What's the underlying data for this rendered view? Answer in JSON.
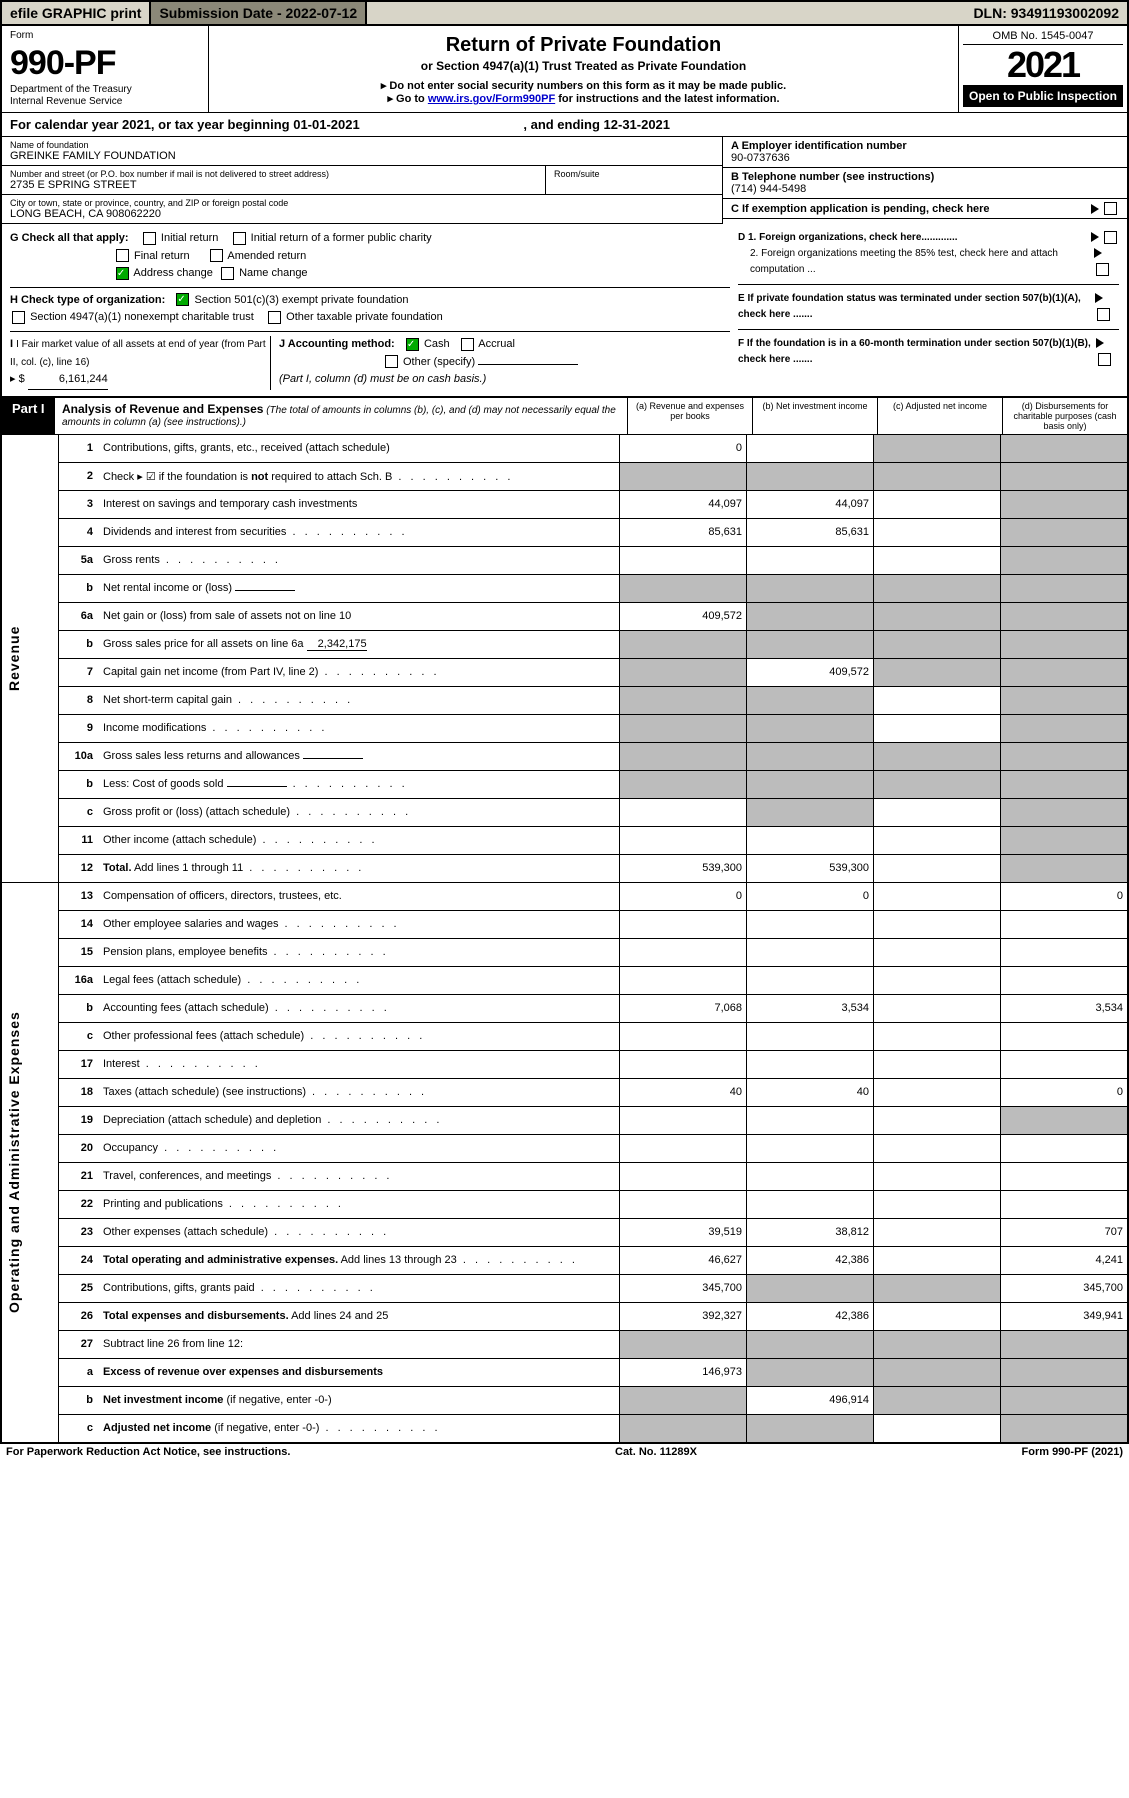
{
  "top": {
    "efile": "efile GRAPHIC print",
    "sub_label": "Submission Date - 2022-07-12",
    "dln": "DLN: 93491193002092"
  },
  "header": {
    "form_label": "Form",
    "form_num": "990-PF",
    "dept": "Department of the Treasury",
    "irs": "Internal Revenue Service",
    "title": "Return of Private Foundation",
    "subtitle": "or Section 4947(a)(1) Trust Treated as Private Foundation",
    "instr1": "▸ Do not enter social security numbers on this form as it may be made public.",
    "instr2_pre": "▸ Go to ",
    "instr2_link": "www.irs.gov/Form990PF",
    "instr2_post": " for instructions and the latest information.",
    "omb": "OMB No. 1545-0047",
    "year": "2021",
    "open": "Open to Public Inspection"
  },
  "cal": {
    "text": "For calendar year 2021, or tax year beginning 01-01-2021",
    "ending": ", and ending 12-31-2021"
  },
  "info": {
    "name_label": "Name of foundation",
    "name": "GREINKE FAMILY FOUNDATION",
    "addr_label": "Number and street (or P.O. box number if mail is not delivered to street address)",
    "addr": "2735 E SPRING STREET",
    "room_label": "Room/suite",
    "room": "",
    "city_label": "City or town, state or province, country, and ZIP or foreign postal code",
    "city": "LONG BEACH, CA  908062220",
    "a_label": "A Employer identification number",
    "a_val": "90-0737636",
    "b_label": "B Telephone number (see instructions)",
    "b_val": "(714) 944-5498",
    "c_label": "C If exemption application is pending, check here"
  },
  "g": {
    "label": "G Check all that apply:",
    "initial": "Initial return",
    "initial_former": "Initial return of a former public charity",
    "final": "Final return",
    "amended": "Amended return",
    "address": "Address change",
    "name_change": "Name change"
  },
  "h": {
    "label": "H Check type of organization:",
    "s501": "Section 501(c)(3) exempt private foundation",
    "s4947": "Section 4947(a)(1) nonexempt charitable trust",
    "other_tax": "Other taxable private foundation"
  },
  "i": {
    "label": "I Fair market value of all assets at end of year (from Part II, col. (c), line 16)",
    "arrow": "▸ $",
    "val": "6,161,244"
  },
  "j": {
    "label": "J Accounting method:",
    "cash": "Cash",
    "accrual": "Accrual",
    "other": "Other (specify)",
    "note": "(Part I, column (d) must be on cash basis.)"
  },
  "d": {
    "d1": "D 1. Foreign organizations, check here.............",
    "d2": "2. Foreign organizations meeting the 85% test, check here and attach computation ...",
    "e": "E If private foundation status was terminated under section 507(b)(1)(A), check here .......",
    "f": "F If the foundation is in a 60-month termination under section 507(b)(1)(B), check here ......."
  },
  "part1": {
    "tag": "Part I",
    "title": "Analysis of Revenue and Expenses",
    "note": " (The total of amounts in columns (b), (c), and (d) may not necessarily equal the amounts in column (a) (see instructions).)",
    "ca": "(a) Revenue and expenses per books",
    "cb": "(b) Net investment income",
    "cc": "(c) Adjusted net income",
    "cd": "(d) Disbursements for charitable purposes (cash basis only)"
  },
  "side": {
    "rev": "Revenue",
    "exp": "Operating and Administrative Expenses"
  },
  "rows": [
    {
      "n": "1",
      "l": "Contributions, gifts, grants, etc., received (attach schedule)",
      "a": "0",
      "b": "",
      "c": "g",
      "d": "g"
    },
    {
      "n": "2",
      "l": "Check ▸ ☑ if the foundation is <b>not</b> required to attach Sch. B",
      "dots": true,
      "a": "g",
      "b": "g",
      "c": "g",
      "d": "g"
    },
    {
      "n": "3",
      "l": "Interest on savings and temporary cash investments",
      "a": "44,097",
      "b": "44,097",
      "c": "",
      "d": "g"
    },
    {
      "n": "4",
      "l": "Dividends and interest from securities",
      "dots": true,
      "a": "85,631",
      "b": "85,631",
      "c": "",
      "d": "g"
    },
    {
      "n": "5a",
      "l": "Gross rents",
      "dots": true,
      "a": "",
      "b": "",
      "c": "",
      "d": "g"
    },
    {
      "n": "b",
      "l": "Net rental income or (loss)",
      "inline": "",
      "a": "g",
      "b": "g",
      "c": "g",
      "d": "g"
    },
    {
      "n": "6a",
      "l": "Net gain or (loss) from sale of assets not on line 10",
      "a": "409,572",
      "b": "g",
      "c": "g",
      "d": "g"
    },
    {
      "n": "b",
      "l": "Gross sales price for all assets on line 6a",
      "inline": "2,342,175",
      "a": "g",
      "b": "g",
      "c": "g",
      "d": "g"
    },
    {
      "n": "7",
      "l": "Capital gain net income (from Part IV, line 2)",
      "dots": true,
      "a": "g",
      "b": "409,572",
      "c": "g",
      "d": "g"
    },
    {
      "n": "8",
      "l": "Net short-term capital gain",
      "dots": true,
      "a": "g",
      "b": "g",
      "c": "",
      "d": "g"
    },
    {
      "n": "9",
      "l": "Income modifications",
      "dots": true,
      "a": "g",
      "b": "g",
      "c": "",
      "d": "g"
    },
    {
      "n": "10a",
      "l": "Gross sales less returns and allowances",
      "inline": "",
      "a": "g",
      "b": "g",
      "c": "g",
      "d": "g"
    },
    {
      "n": "b",
      "l": "Less: Cost of goods sold",
      "dots": true,
      "inline": "",
      "a": "g",
      "b": "g",
      "c": "g",
      "d": "g"
    },
    {
      "n": "c",
      "l": "Gross profit or (loss) (attach schedule)",
      "dots": true,
      "a": "",
      "b": "g",
      "c": "",
      "d": "g"
    },
    {
      "n": "11",
      "l": "Other income (attach schedule)",
      "dots": true,
      "a": "",
      "b": "",
      "c": "",
      "d": "g"
    },
    {
      "n": "12",
      "l": "<b>Total.</b> Add lines 1 through 11",
      "dots": true,
      "a": "539,300",
      "b": "539,300",
      "c": "",
      "d": "g"
    },
    {
      "n": "13",
      "l": "Compensation of officers, directors, trustees, etc.",
      "a": "0",
      "b": "0",
      "c": "",
      "d": "0"
    },
    {
      "n": "14",
      "l": "Other employee salaries and wages",
      "dots": true,
      "a": "",
      "b": "",
      "c": "",
      "d": ""
    },
    {
      "n": "15",
      "l": "Pension plans, employee benefits",
      "dots": true,
      "a": "",
      "b": "",
      "c": "",
      "d": ""
    },
    {
      "n": "16a",
      "l": "Legal fees (attach schedule)",
      "dots": true,
      "a": "",
      "b": "",
      "c": "",
      "d": ""
    },
    {
      "n": "b",
      "l": "Accounting fees (attach schedule)",
      "dots": true,
      "a": "7,068",
      "b": "3,534",
      "c": "",
      "d": "3,534"
    },
    {
      "n": "c",
      "l": "Other professional fees (attach schedule)",
      "dots": true,
      "a": "",
      "b": "",
      "c": "",
      "d": ""
    },
    {
      "n": "17",
      "l": "Interest",
      "dots": true,
      "a": "",
      "b": "",
      "c": "",
      "d": ""
    },
    {
      "n": "18",
      "l": "Taxes (attach schedule) (see instructions)",
      "dots": true,
      "a": "40",
      "b": "40",
      "c": "",
      "d": "0"
    },
    {
      "n": "19",
      "l": "Depreciation (attach schedule) and depletion",
      "dots": true,
      "a": "",
      "b": "",
      "c": "",
      "d": "g"
    },
    {
      "n": "20",
      "l": "Occupancy",
      "dots": true,
      "a": "",
      "b": "",
      "c": "",
      "d": ""
    },
    {
      "n": "21",
      "l": "Travel, conferences, and meetings",
      "dots": true,
      "a": "",
      "b": "",
      "c": "",
      "d": ""
    },
    {
      "n": "22",
      "l": "Printing and publications",
      "dots": true,
      "a": "",
      "b": "",
      "c": "",
      "d": ""
    },
    {
      "n": "23",
      "l": "Other expenses (attach schedule)",
      "dots": true,
      "a": "39,519",
      "b": "38,812",
      "c": "",
      "d": "707"
    },
    {
      "n": "24",
      "l": "<b>Total operating and administrative expenses.</b> Add lines 13 through 23",
      "dots": true,
      "a": "46,627",
      "b": "42,386",
      "c": "",
      "d": "4,241"
    },
    {
      "n": "25",
      "l": "Contributions, gifts, grants paid",
      "dots": true,
      "a": "345,700",
      "b": "g",
      "c": "g",
      "d": "345,700"
    },
    {
      "n": "26",
      "l": "<b>Total expenses and disbursements.</b> Add lines 24 and 25",
      "a": "392,327",
      "b": "42,386",
      "c": "",
      "d": "349,941"
    },
    {
      "n": "27",
      "l": "Subtract line 26 from line 12:",
      "a": "g",
      "b": "g",
      "c": "g",
      "d": "g"
    },
    {
      "n": "a",
      "l": "<b>Excess of revenue over expenses and disbursements</b>",
      "a": "146,973",
      "b": "g",
      "c": "g",
      "d": "g"
    },
    {
      "n": "b",
      "l": "<b>Net investment income</b> (if negative, enter -0-)",
      "a": "g",
      "b": "496,914",
      "c": "g",
      "d": "g"
    },
    {
      "n": "c",
      "l": "<b>Adjusted net income</b> (if negative, enter -0-)",
      "dots": true,
      "a": "g",
      "b": "g",
      "c": "",
      "d": "g"
    }
  ],
  "footer": {
    "left": "For Paperwork Reduction Act Notice, see instructions.",
    "mid": "Cat. No. 11289X",
    "right": "Form 990-PF (2021)"
  }
}
